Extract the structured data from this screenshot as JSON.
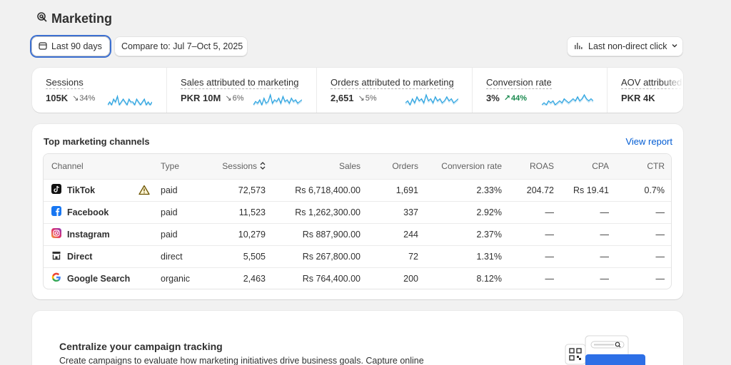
{
  "page": {
    "title": "Marketing"
  },
  "toolbar": {
    "date_range": "Last 90 days",
    "compare": "Compare to: Jul 7–Oct 5, 2025",
    "attribution": "Last non-direct click"
  },
  "metrics": [
    {
      "title": "Sessions",
      "value": "105K",
      "change": "34%",
      "direction": "down",
      "spark": [
        3,
        4,
        3,
        5,
        4,
        6,
        3,
        4,
        5,
        4,
        3,
        5,
        4,
        4,
        3,
        5,
        4,
        3,
        4,
        5,
        3,
        4,
        3,
        4
      ]
    },
    {
      "title": "Sales attributed to marketing",
      "value": "PKR 10M",
      "change": "6%",
      "direction": "down",
      "spark": [
        3,
        5,
        4,
        6,
        3,
        7,
        4,
        5,
        9,
        4,
        6,
        5,
        7,
        4,
        8,
        5,
        6,
        4,
        7,
        5,
        6,
        4,
        5,
        6
      ]
    },
    {
      "title": "Orders attributed to marketing",
      "value": "2,651",
      "change": "5%",
      "direction": "down",
      "spark": [
        4,
        5,
        3,
        6,
        4,
        7,
        5,
        6,
        4,
        8,
        5,
        6,
        4,
        7,
        5,
        6,
        4,
        5,
        7,
        5,
        6,
        4,
        5,
        6
      ]
    },
    {
      "title": "Conversion rate",
      "value": "3%",
      "change": "44%",
      "direction": "up",
      "spark": [
        3,
        4,
        3,
        5,
        4,
        5,
        3,
        4,
        5,
        4,
        6,
        5,
        4,
        5,
        6,
        5,
        7,
        5,
        6,
        8,
        6,
        5,
        6,
        5
      ]
    },
    {
      "title": "AOV attributed to marketing",
      "value": "PKR 4K",
      "change": "",
      "direction": "none",
      "spark": []
    }
  ],
  "channels": {
    "title": "Top marketing channels",
    "link": "View report",
    "columns": [
      "Channel",
      "Type",
      "Sessions",
      "Sales",
      "Orders",
      "Conversion rate",
      "ROAS",
      "CPA",
      "CTR"
    ],
    "rows": [
      {
        "channel": "TikTok",
        "icon": "tiktok-icon",
        "type": "paid",
        "sessions": "72,573",
        "sales": "Rs 6,718,400.00",
        "orders": "1,691",
        "conversion": "2.33%",
        "roas": "204.72",
        "cpa": "Rs 19.41",
        "ctr": "0.7%"
      },
      {
        "channel": "Facebook",
        "icon": "facebook-icon",
        "type": "paid",
        "sessions": "11,523",
        "sales": "Rs 1,262,300.00",
        "orders": "337",
        "conversion": "2.92%",
        "roas": "—",
        "cpa": "—",
        "ctr": "—"
      },
      {
        "channel": "Instagram",
        "icon": "instagram-icon",
        "type": "paid",
        "sessions": "10,279",
        "sales": "Rs 887,900.00",
        "orders": "244",
        "conversion": "2.37%",
        "roas": "—",
        "cpa": "—",
        "ctr": "—"
      },
      {
        "channel": "Direct",
        "icon": "store-icon",
        "type": "direct",
        "sessions": "5,505",
        "sales": "Rs 267,800.00",
        "orders": "72",
        "conversion": "1.31%",
        "roas": "—",
        "cpa": "—",
        "ctr": "—"
      },
      {
        "channel": "Google Search",
        "icon": "google-icon",
        "type": "organic",
        "sessions": "2,463",
        "sales": "Rs 764,400.00",
        "orders": "200",
        "conversion": "8.12%",
        "roas": "—",
        "cpa": "—",
        "ctr": "—"
      }
    ]
  },
  "promo": {
    "title": "Centralize your campaign tracking",
    "text": "Create campaigns to evaluate how marketing initiatives drive business goals. Capture online"
  },
  "colors": {
    "accent_link": "#005bd3",
    "sparkline": "#29a3e0",
    "positive": "#1a8a4f",
    "focus": "#3b6fd1"
  }
}
